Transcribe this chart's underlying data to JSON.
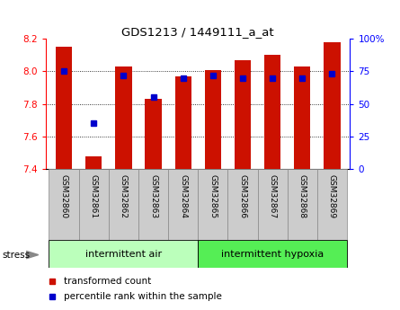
{
  "title": "GDS1213 / 1449111_a_at",
  "samples": [
    "GSM32860",
    "GSM32861",
    "GSM32862",
    "GSM32863",
    "GSM32864",
    "GSM32865",
    "GSM32866",
    "GSM32867",
    "GSM32868",
    "GSM32869"
  ],
  "transformed_count": [
    8.15,
    7.48,
    8.03,
    7.83,
    7.97,
    8.01,
    8.07,
    8.1,
    8.03,
    8.18
  ],
  "percentile_rank": [
    75,
    35,
    72,
    55,
    70,
    72,
    70,
    70,
    70,
    73
  ],
  "ylim_left": [
    7.4,
    8.2
  ],
  "ylim_right": [
    0,
    100
  ],
  "yticks_left": [
    7.4,
    7.6,
    7.8,
    8.0,
    8.2
  ],
  "yticks_right": [
    0,
    25,
    50,
    75,
    100
  ],
  "ytick_labels_right": [
    "0",
    "25",
    "50",
    "75",
    "100%"
  ],
  "group1_label": "intermittent air",
  "group2_label": "intermittent hypoxia",
  "group1_indices": [
    0,
    1,
    2,
    3,
    4
  ],
  "group2_indices": [
    5,
    6,
    7,
    8,
    9
  ],
  "stress_label": "stress",
  "legend_red_label": "transformed count",
  "legend_blue_label": "percentile rank within the sample",
  "bar_color": "#CC1100",
  "dot_color": "#0000CC",
  "group1_bg": "#BBFFBB",
  "group2_bg": "#55EE55",
  "tick_bg": "#CCCCCC",
  "bar_bottom": 7.4
}
